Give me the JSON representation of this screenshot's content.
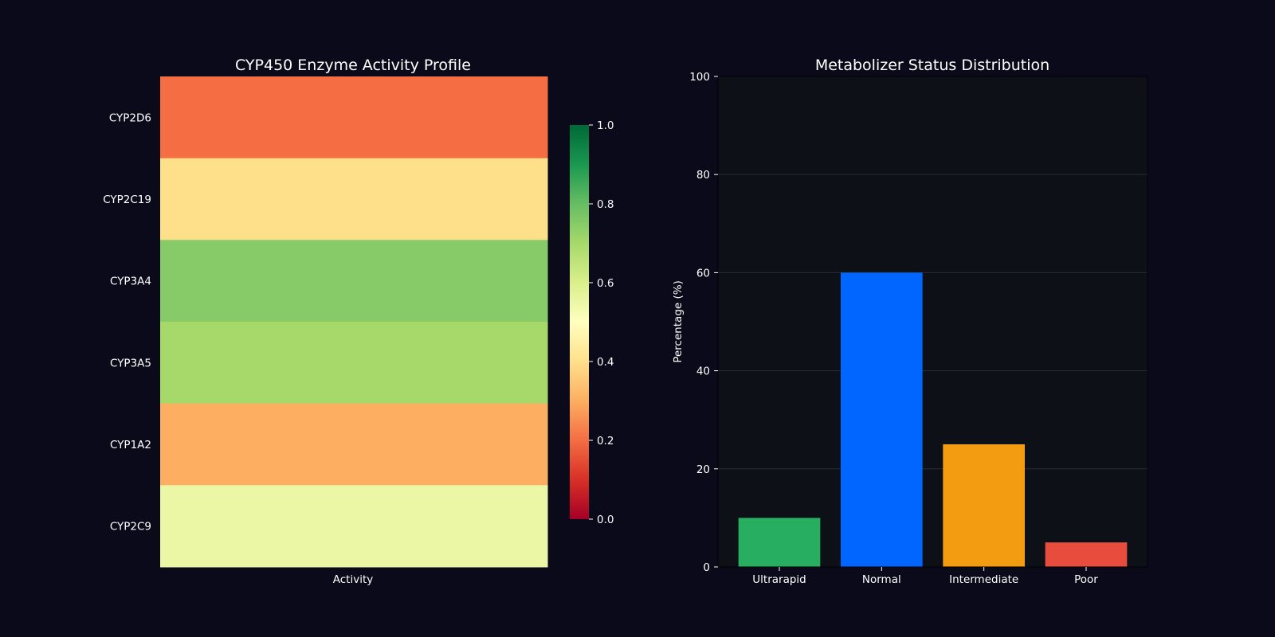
{
  "chart_data": [
    {
      "type": "heatmap",
      "title": "CYP450 Enzyme Activity Profile",
      "xlabel": "",
      "ylabel": "",
      "columns": [
        "Activity"
      ],
      "rows": [
        "CYP2D6",
        "CYP2C19",
        "CYP3A4",
        "CYP3A5",
        "CYP1A2",
        "CYP2C9"
      ],
      "values": [
        [
          0.2
        ],
        [
          0.4
        ],
        [
          0.75
        ],
        [
          0.7
        ],
        [
          0.3
        ],
        [
          0.55
        ]
      ],
      "colormap": "RdYlGn",
      "colorbar": {
        "range": [
          0,
          1
        ],
        "ticks": [
          0.0,
          0.2,
          0.4,
          0.6,
          0.8,
          1.0
        ],
        "tick_labels": [
          "0.0",
          "0.2",
          "0.4",
          "0.6",
          "0.8",
          "1.0"
        ]
      }
    },
    {
      "type": "bar",
      "title": "Metabolizer Status Distribution",
      "xlabel": "",
      "ylabel": "Percentage (%)",
      "categories": [
        "Ultrarapid",
        "Normal",
        "Intermediate",
        "Poor"
      ],
      "values": [
        10,
        60,
        25,
        5
      ],
      "colors": [
        "#27ae60",
        "#0066ff",
        "#f39c12",
        "#e74c3c"
      ],
      "ylim": [
        0,
        100
      ],
      "yticks": [
        0,
        20,
        40,
        60,
        80,
        100
      ],
      "grid": true
    }
  ],
  "colors": {
    "figure_background": "#0a0a1a",
    "axes_background": "#0d1117",
    "text": "#ffffff",
    "grid": "#2a2e33"
  }
}
